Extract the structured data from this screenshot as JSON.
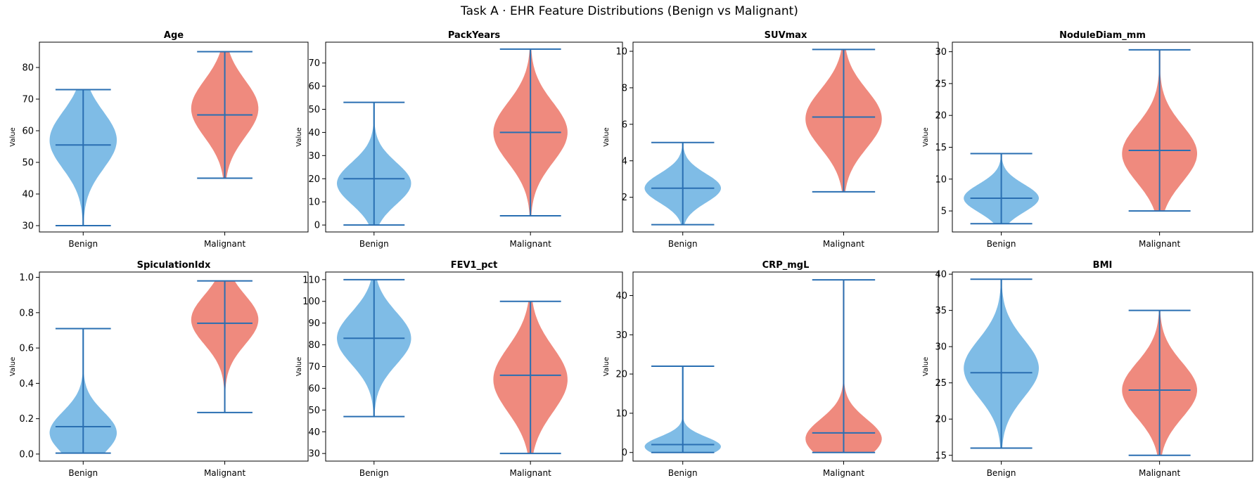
{
  "title": "Task A · EHR Feature Distributions (Benign vs Malignant)",
  "colors": {
    "benign": "#7fbce6",
    "malignant": "#ef8a7e",
    "line": "#2a6fb2"
  },
  "chart_data": [
    {
      "type": "violin",
      "title": "Age",
      "ylabel": "Value",
      "categories": [
        "Benign",
        "Malignant"
      ],
      "ylim": [
        28,
        88
      ],
      "yticks": [
        30,
        40,
        50,
        60,
        70,
        80
      ],
      "series": [
        {
          "name": "Benign",
          "min": 30,
          "max": 73,
          "median": 55.5,
          "peak": 57,
          "spread": 9
        },
        {
          "name": "Malignant",
          "min": 45,
          "max": 85,
          "median": 65,
          "peak": 67,
          "spread": 9
        }
      ]
    },
    {
      "type": "violin",
      "title": "PackYears",
      "ylabel": "Value",
      "categories": [
        "Benign",
        "Malignant"
      ],
      "ylim": [
        -3,
        79
      ],
      "yticks": [
        0,
        10,
        20,
        30,
        40,
        50,
        60,
        70
      ],
      "series": [
        {
          "name": "Benign",
          "min": 0,
          "max": 53,
          "median": 20,
          "peak": 18,
          "spread": 9
        },
        {
          "name": "Malignant",
          "min": 4,
          "max": 76,
          "median": 40,
          "peak": 40,
          "spread": 13
        }
      ]
    },
    {
      "type": "violin",
      "title": "SUVmax",
      "ylabel": "Value",
      "categories": [
        "Benign",
        "Malignant"
      ],
      "ylim": [
        0.1,
        10.5
      ],
      "yticks": [
        2,
        4,
        6,
        8,
        10
      ],
      "series": [
        {
          "name": "Benign",
          "min": 0.5,
          "max": 5,
          "median": 2.5,
          "peak": 2.5,
          "spread": 0.8
        },
        {
          "name": "Malignant",
          "min": 2.3,
          "max": 10.1,
          "median": 6.4,
          "peak": 6.3,
          "spread": 1.6
        }
      ]
    },
    {
      "type": "violin",
      "title": "NoduleDiam_mm",
      "ylabel": "Value",
      "categories": [
        "Benign",
        "Malignant"
      ],
      "ylim": [
        1.7,
        31.5
      ],
      "yticks": [
        5,
        10,
        15,
        20,
        25,
        30
      ],
      "series": [
        {
          "name": "Benign",
          "min": 3,
          "max": 14,
          "median": 7,
          "peak": 7,
          "spread": 2.2
        },
        {
          "name": "Malignant",
          "min": 5,
          "max": 30.3,
          "median": 14.5,
          "peak": 14,
          "spread": 4.5
        }
      ]
    },
    {
      "type": "violin",
      "title": "SpiculationIdx",
      "ylabel": "Value",
      "categories": [
        "Benign",
        "Malignant"
      ],
      "ylim": [
        -0.04,
        1.03
      ],
      "yticks": [
        "0.0",
        "0.2",
        "0.4",
        "0.6",
        "0.8",
        "1.0"
      ],
      "series": [
        {
          "name": "Benign",
          "min": 0.005,
          "max": 0.71,
          "median": 0.155,
          "peak": 0.12,
          "spread": 0.12
        },
        {
          "name": "Malignant",
          "min": 0.235,
          "max": 0.98,
          "median": 0.74,
          "peak": 0.76,
          "spread": 0.14
        }
      ]
    },
    {
      "type": "violin",
      "title": "FEV1_pct",
      "ylabel": "Value",
      "categories": [
        "Benign",
        "Malignant"
      ],
      "ylim": [
        26.5,
        113.5
      ],
      "yticks": [
        30,
        40,
        50,
        60,
        70,
        80,
        90,
        100,
        110
      ],
      "series": [
        {
          "name": "Benign",
          "min": 47,
          "max": 110,
          "median": 83,
          "peak": 83,
          "spread": 12
        },
        {
          "name": "Malignant",
          "min": 30,
          "max": 100,
          "median": 66,
          "peak": 64,
          "spread": 15
        }
      ]
    },
    {
      "type": "violin",
      "title": "CRP_mgL",
      "ylabel": "Value",
      "categories": [
        "Benign",
        "Malignant"
      ],
      "ylim": [
        -2.2,
        46
      ],
      "yticks": [
        0,
        10,
        20,
        30,
        40
      ],
      "series": [
        {
          "name": "Benign",
          "min": 0,
          "max": 22,
          "median": 2,
          "peak": 1.5,
          "spread": 2.5
        },
        {
          "name": "Malignant",
          "min": 0,
          "max": 44,
          "median": 5,
          "peak": 3.5,
          "spread": 5
        }
      ]
    },
    {
      "type": "violin",
      "title": "BMI",
      "ylabel": "Value",
      "categories": [
        "Benign",
        "Malignant"
      ],
      "ylim": [
        14.2,
        40.3
      ],
      "yticks": [
        15,
        20,
        25,
        30,
        35,
        40
      ],
      "series": [
        {
          "name": "Benign",
          "min": 16,
          "max": 39.3,
          "median": 26.4,
          "peak": 27,
          "spread": 4
        },
        {
          "name": "Malignant",
          "min": 15,
          "max": 35,
          "median": 24,
          "peak": 24,
          "spread": 3.8
        }
      ]
    }
  ]
}
